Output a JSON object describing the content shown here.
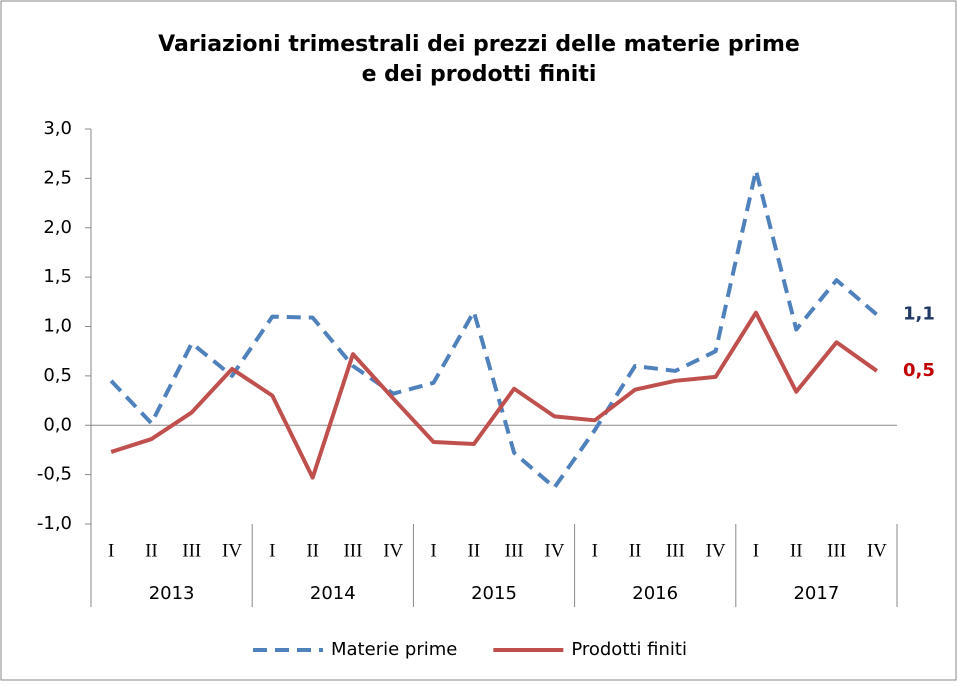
{
  "chart_data": {
    "type": "line",
    "title": [
      "Variazioni trimestrali dei prezzi delle materie prime",
      "e dei prodotti finiti"
    ],
    "categories": [
      "I",
      "II",
      "III",
      "IV",
      "I",
      "II",
      "III",
      "IV",
      "I",
      "II",
      "III",
      "IV",
      "I",
      "II",
      "III",
      "IV",
      "I",
      "II",
      "III",
      "IV"
    ],
    "years": [
      "2013",
      "2014",
      "2015",
      "2016",
      "2017"
    ],
    "series": [
      {
        "name": "Materie prime",
        "color": "#4f81bd",
        "dash": true,
        "label_color": "#1f3864",
        "values": [
          0.45,
          0.02,
          0.83,
          0.5,
          1.1,
          1.09,
          0.6,
          0.32,
          0.43,
          1.15,
          -0.28,
          -0.63,
          -0.05,
          0.6,
          0.55,
          0.75,
          2.58,
          0.97,
          1.47,
          1.12
        ],
        "value_labels": [
          null,
          null,
          null,
          null,
          null,
          null,
          null,
          null,
          null,
          null,
          null,
          null,
          null,
          null,
          null,
          null,
          null,
          null,
          null,
          "1,1"
        ]
      },
      {
        "name": "Prodotti finiti",
        "color": "#c0504d",
        "dash": false,
        "label_color": "#c00000",
        "values": [
          -0.27,
          -0.14,
          0.13,
          0.57,
          0.3,
          -0.53,
          0.72,
          0.27,
          -0.17,
          -0.19,
          0.37,
          0.09,
          0.05,
          0.36,
          0.45,
          0.49,
          1.14,
          0.34,
          0.84,
          0.55
        ],
        "value_labels": [
          null,
          null,
          null,
          null,
          null,
          null,
          null,
          null,
          null,
          null,
          null,
          null,
          null,
          null,
          null,
          null,
          null,
          null,
          null,
          "0,5"
        ]
      }
    ],
    "ylim": [
      -1,
      3
    ],
    "yticks": [
      {
        "value": -1,
        "label": "-1,0"
      },
      {
        "value": -0.5,
        "label": "-0,5"
      },
      {
        "value": 0,
        "label": "0,0"
      },
      {
        "value": 0.5,
        "label": "0,5"
      },
      {
        "value": 1,
        "label": "1,0"
      },
      {
        "value": 1.5,
        "label": "1,5"
      },
      {
        "value": 2,
        "label": "2,0"
      },
      {
        "value": 2.5,
        "label": "2,5"
      },
      {
        "value": 3,
        "label": "3,0"
      }
    ],
    "legend": "bottom"
  }
}
